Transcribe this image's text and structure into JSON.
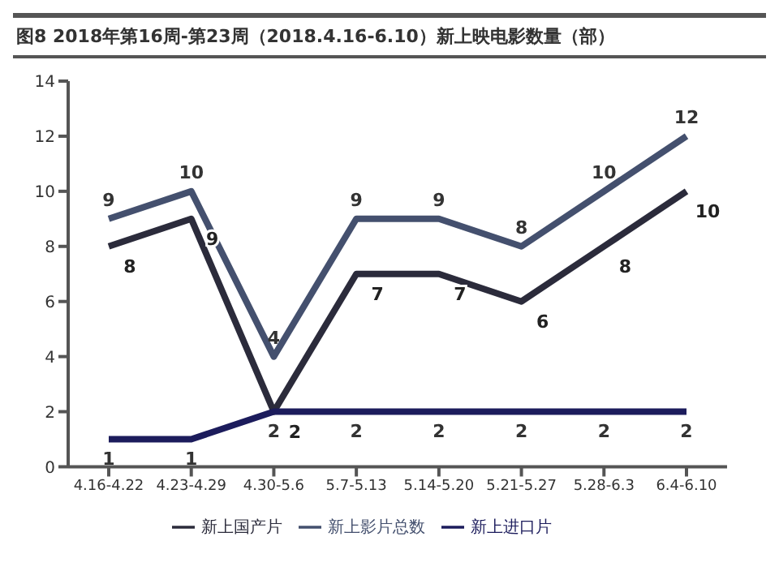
{
  "chart_data": {
    "type": "line",
    "title": "图8 2018年第16周-第23周（2018.4.16-6.10）新上映电影数量（部）",
    "categories": [
      "4.16-4.22",
      "4.23-4.29",
      "4.30-5.6",
      "5.7-5.13",
      "5.14-5.20",
      "5.21-5.27",
      "5.28-6.3",
      "6.4-6.10"
    ],
    "series": [
      {
        "name": "新上国产片",
        "color": "#2b2b3b",
        "values": [
          8,
          9,
          2,
          7,
          7,
          6,
          8,
          10
        ]
      },
      {
        "name": "新上进口片",
        "color": "#1c1c5c",
        "values": [
          1,
          1,
          2,
          2,
          2,
          2,
          2,
          2
        ]
      },
      {
        "name": "新上影片总数",
        "color": "#44506e",
        "values": [
          9,
          10,
          4,
          9,
          9,
          8,
          10,
          12
        ]
      }
    ],
    "ylim": [
      0,
      14
    ],
    "yticks": [
      0,
      2,
      4,
      6,
      8,
      10,
      12,
      14
    ],
    "data_labels": true,
    "legend": "bottom",
    "grid": false,
    "marker": "none",
    "line_style": "solid"
  }
}
